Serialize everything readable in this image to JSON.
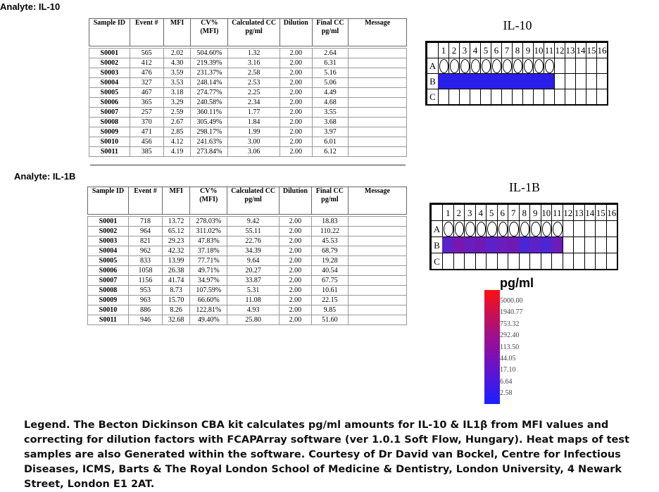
{
  "il10": {
    "analyte_label": "Analyte: IL-10",
    "plate_title": "IL-10",
    "headers": [
      "Sample ID",
      "Event #",
      "MFI",
      "CV% (MFI)",
      "Calculated CC pg/ml",
      "Dilution",
      "Final CC pg/ml",
      "Message"
    ],
    "rows": [
      [
        "S0001",
        "565",
        "2.02",
        "504.60%",
        "1.32",
        "2.00",
        "2.64",
        ""
      ],
      [
        "S0002",
        "412",
        "4.30",
        "219.39%",
        "3.16",
        "2.00",
        "6.31",
        ""
      ],
      [
        "S0003",
        "476",
        "3.59",
        "231.37%",
        "2.58",
        "2.00",
        "5.16",
        ""
      ],
      [
        "S0004",
        "327",
        "3.53",
        "248.14%",
        "2.53",
        "2.00",
        "5.06",
        ""
      ],
      [
        "S0005",
        "467",
        "3.18",
        "274.77%",
        "2.25",
        "2.00",
        "4.49",
        ""
      ],
      [
        "S0006",
        "365",
        "3.29",
        "240.58%",
        "2.34",
        "2.00",
        "4.68",
        ""
      ],
      [
        "S0007",
        "257",
        "2.59",
        "360.11%",
        "1.77",
        "2.00",
        "3.55",
        ""
      ],
      [
        "S0008",
        "370",
        "2.67",
        "305.49%",
        "1.84",
        "2.00",
        "3.68",
        ""
      ],
      [
        "S0009",
        "471",
        "2.85",
        "298.17%",
        "1.99",
        "2.00",
        "3.97",
        ""
      ],
      [
        "S0010",
        "456",
        "4.12",
        "241.63%",
        "3.00",
        "2.00",
        "6.01",
        ""
      ],
      [
        "S0011",
        "385",
        "4.19",
        "273.84%",
        "3.06",
        "2.00",
        "6.12",
        ""
      ]
    ],
    "row_b_colors": [
      "#2a1fe8",
      "#2a1fe8",
      "#2a1fe8",
      "#2a1fe8",
      "#2a1fe8",
      "#2a1fe8",
      "#2a1fe8",
      "#2a1fe8",
      "#2a1fe8",
      "#2a1fe8",
      "#2a1fe8"
    ]
  },
  "il1b": {
    "analyte_label": "Analyte: IL-1B",
    "plate_title": "IL-1B",
    "headers": [
      "Sample ID",
      "Event #",
      "MFI",
      "CV% (MFI)",
      "Calculated CC pg/ml",
      "Dilution",
      "Final CC pg/ml",
      "Message"
    ],
    "rows": [
      [
        "S0001",
        "718",
        "13.72",
        "278.03%",
        "9.42",
        "2.00",
        "18.83",
        ""
      ],
      [
        "S0002",
        "964",
        "65.12",
        "311.02%",
        "55.11",
        "2.00",
        "110.22",
        ""
      ],
      [
        "S0003",
        "821",
        "29.23",
        "47.83%",
        "22.76",
        "2.00",
        "45.53",
        ""
      ],
      [
        "S0004",
        "962",
        "42.32",
        "37.18%",
        "34.39",
        "2.00",
        "68.79",
        ""
      ],
      [
        "S0005",
        "833",
        "13.99",
        "77.71%",
        "9.64",
        "2.00",
        "19.28",
        ""
      ],
      [
        "S0006",
        "1058",
        "26.38",
        "49.71%",
        "20.27",
        "2.00",
        "40.54",
        ""
      ],
      [
        "S0007",
        "1156",
        "41.74",
        "34.97%",
        "33.87",
        "2.00",
        "67.75",
        ""
      ],
      [
        "S0008",
        "953",
        "8.73",
        "107.59%",
        "5.31",
        "2.00",
        "10.61",
        ""
      ],
      [
        "S0009",
        "963",
        "15.70",
        "66.60%",
        "11.08",
        "2.00",
        "22.15",
        ""
      ],
      [
        "S0010",
        "886",
        "8.26",
        "122.81%",
        "4.93",
        "2.00",
        "9.85",
        ""
      ],
      [
        "S0011",
        "946",
        "32.68",
        "49.40%",
        "25.80",
        "2.00",
        "51.60",
        ""
      ]
    ],
    "row_b_colors": [
      "#5a22c8",
      "#7a16b0",
      "#6a1cbc",
      "#7018b4",
      "#5a22c8",
      "#6a1cbc",
      "#7018b4",
      "#4a26d4",
      "#5c22c6",
      "#4a26d4",
      "#6c1cba"
    ]
  },
  "plate": {
    "columns": [
      "1",
      "2",
      "3",
      "4",
      "5",
      "6",
      "7",
      "8",
      "9",
      "10",
      "11",
      "12",
      "13",
      "14",
      "15",
      "16"
    ],
    "rows": [
      "A",
      "B",
      "C"
    ]
  },
  "colorscale": {
    "title": "pg/ml",
    "ticks": [
      "5000.00",
      "1940.77",
      "753.32",
      "292.40",
      "113.50",
      "44.05",
      "17.10",
      "6.64",
      "2.58"
    ]
  },
  "legend": "Legend. The Becton Dickinson CBA kit calculates pg/ml amounts for IL-10 & IL1β  from MFI values and correcting for dilution factors with FCAPArray  software (ver 1.0.1 Soft Flow, Hungary).  Heat maps of test samples are also Generated within the software. Courtesy of Dr David van Bockel, Centre for Infectious Diseases, ICMS, Barts & The Royal London School of Medicine & Dentistry, London University, 4 Newark Street, London E1 2AT."
}
